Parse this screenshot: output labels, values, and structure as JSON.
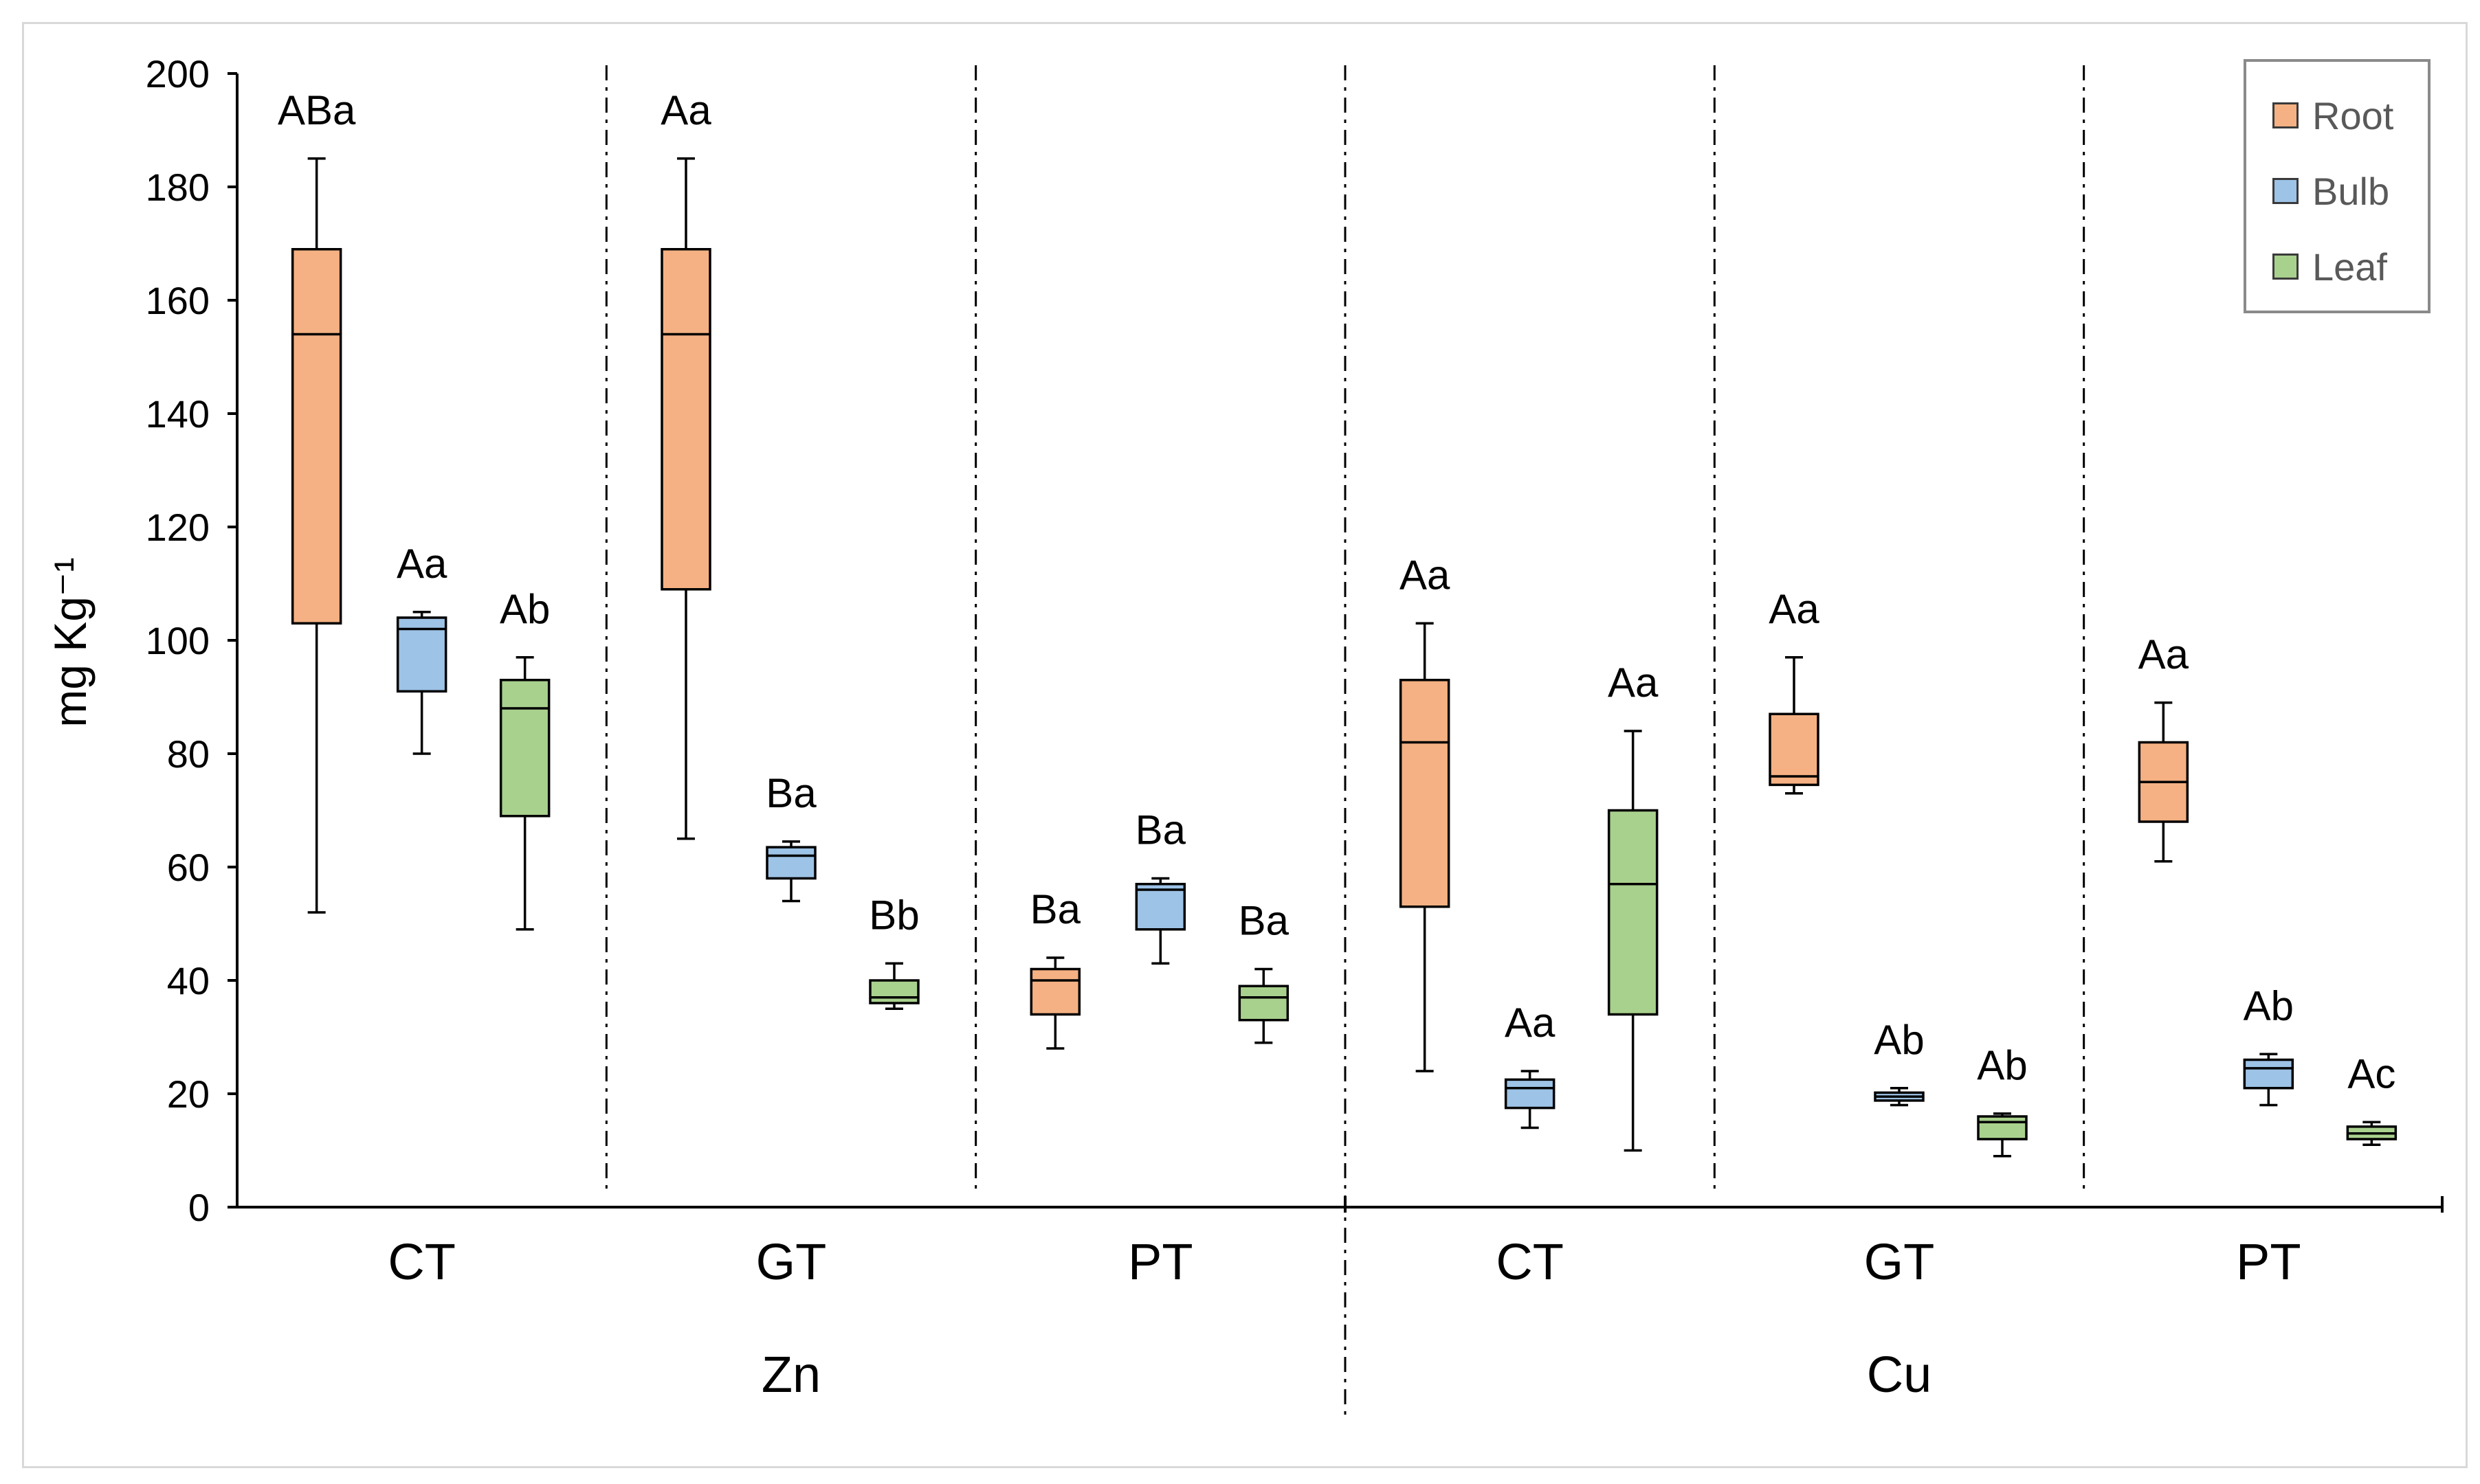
{
  "chart_data": {
    "type": "boxplot",
    "title": "",
    "ylabel": "mg Kg⁻¹",
    "ylim": [
      0,
      200
    ],
    "yticks": [
      0,
      20,
      40,
      60,
      80,
      100,
      120,
      140,
      160,
      180,
      200
    ],
    "grid": false,
    "legend_position": "top-right",
    "series": [
      {
        "name": "Root",
        "color": "#f5b183",
        "line": "#000000"
      },
      {
        "name": "Bulb",
        "color": "#9dc3e6",
        "line": "#000000"
      },
      {
        "name": "Leaf",
        "color": "#a9d18e",
        "line": "#000000"
      }
    ],
    "groups": [
      {
        "metal": "Zn",
        "treatments": [
          {
            "label": "CT",
            "boxes": [
              {
                "series": "Root",
                "min": 52,
                "q1": 103,
                "median": 154,
                "q3": 169,
                "max": 185,
                "letter": "ABa"
              },
              {
                "series": "Bulb",
                "min": 80,
                "q1": 91,
                "median": 102,
                "q3": 104,
                "max": 105,
                "letter": "Aa"
              },
              {
                "series": "Leaf",
                "min": 49,
                "q1": 69,
                "median": 88,
                "q3": 93,
                "max": 97,
                "letter": "Ab"
              }
            ]
          },
          {
            "label": "GT",
            "boxes": [
              {
                "series": "Root",
                "min": 65,
                "q1": 109,
                "median": 154,
                "q3": 169,
                "max": 185,
                "letter": "Aa"
              },
              {
                "series": "Bulb",
                "min": 54,
                "q1": 58,
                "median": 62,
                "q3": 63.5,
                "max": 64.5,
                "letter": "Ba"
              },
              {
                "series": "Leaf",
                "min": 35,
                "q1": 36,
                "median": 37,
                "q3": 40,
                "max": 43,
                "letter": "Bb"
              }
            ]
          },
          {
            "label": "PT",
            "boxes": [
              {
                "series": "Root",
                "min": 28,
                "q1": 34,
                "median": 40,
                "q3": 42,
                "max": 44,
                "letter": "Ba"
              },
              {
                "series": "Bulb",
                "min": 43,
                "q1": 49,
                "median": 56,
                "q3": 57,
                "max": 58,
                "letter": "Ba"
              },
              {
                "series": "Leaf",
                "min": 29,
                "q1": 33,
                "median": 37,
                "q3": 39,
                "max": 42,
                "letter": "Ba"
              }
            ]
          }
        ]
      },
      {
        "metal": "Cu",
        "treatments": [
          {
            "label": "CT",
            "boxes": [
              {
                "series": "Root",
                "min": 24,
                "q1": 53,
                "median": 82,
                "q3": 93,
                "max": 103,
                "letter": "Aa"
              },
              {
                "series": "Bulb",
                "min": 14,
                "q1": 17.5,
                "median": 21,
                "q3": 22.5,
                "max": 24,
                "letter": "Aa"
              },
              {
                "series": "Leaf",
                "min": 10,
                "q1": 34,
                "median": 57,
                "q3": 70,
                "max": 84,
                "letter": "Aa"
              }
            ]
          },
          {
            "label": "GT",
            "boxes": [
              {
                "series": "Root",
                "min": 73,
                "q1": 74.5,
                "median": 76,
                "q3": 87,
                "max": 97,
                "letter": "Aa"
              },
              {
                "series": "Bulb",
                "min": 18,
                "q1": 18.8,
                "median": 19.5,
                "q3": 20.2,
                "max": 21,
                "letter": "Ab"
              },
              {
                "series": "Leaf",
                "min": 9,
                "q1": 12,
                "median": 15,
                "q3": 16,
                "max": 16.5,
                "letter": "Ab"
              }
            ]
          },
          {
            "label": "PT",
            "boxes": [
              {
                "series": "Root",
                "min": 61,
                "q1": 68,
                "median": 75,
                "q3": 82,
                "max": 89,
                "letter": "Aa"
              },
              {
                "series": "Bulb",
                "min": 18,
                "q1": 21,
                "median": 24.5,
                "q3": 26,
                "max": 27,
                "letter": "Ab"
              },
              {
                "series": "Leaf",
                "min": 11,
                "q1": 12,
                "median": 13,
                "q3": 14.2,
                "max": 15,
                "letter": "Ac"
              }
            ]
          }
        ]
      }
    ]
  }
}
